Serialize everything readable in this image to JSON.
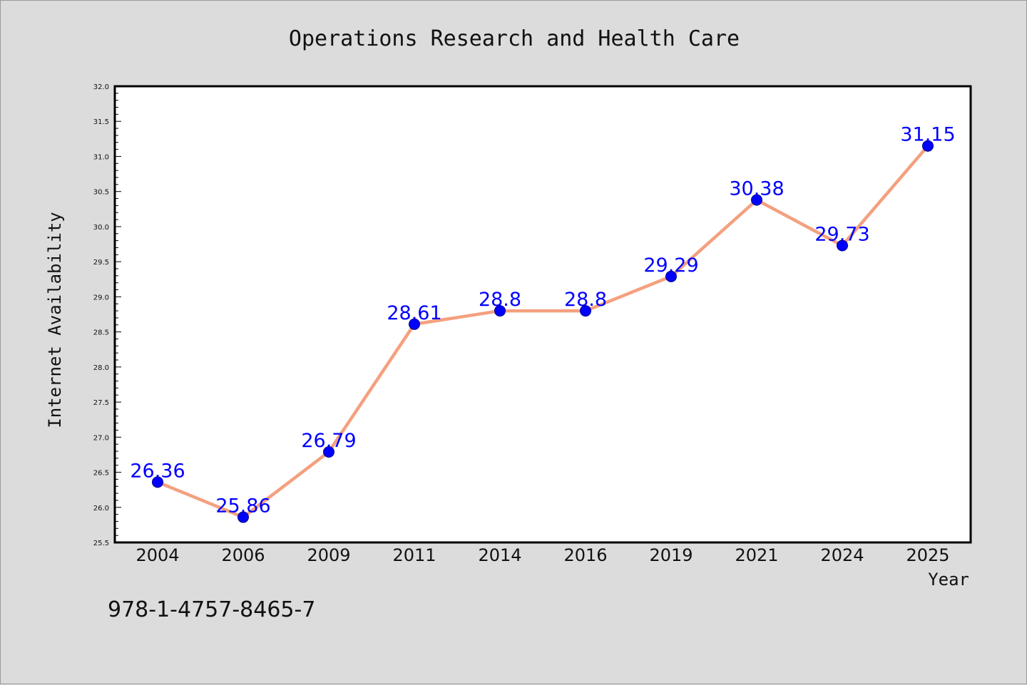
{
  "chart_data": {
    "type": "line",
    "title": "Operations Research and Health Care",
    "xlabel": "Year",
    "ylabel": "Internet Availability",
    "categories": [
      "2004",
      "2006",
      "2009",
      "2011",
      "2014",
      "2016",
      "2019",
      "2021",
      "2024",
      "2025"
    ],
    "values": [
      26.36,
      25.86,
      26.79,
      28.61,
      28.8,
      28.8,
      29.29,
      30.38,
      29.73,
      31.15
    ],
    "data_labels": [
      "26.36",
      "25.86",
      "26.79",
      "28.61",
      "28.8",
      "28.8",
      "29.29",
      "30.38",
      "29.73",
      "31.15"
    ],
    "ylim": [
      25.5,
      32.0
    ],
    "yticks": [
      "25.5",
      "26.0",
      "26.5",
      "27.0",
      "27.5",
      "28.0",
      "28.5",
      "29.0",
      "29.5",
      "30.0",
      "30.5",
      "31.0",
      "31.5",
      "32.0"
    ],
    "grid": false,
    "legend": false,
    "colors": {
      "line": "#f4a07f",
      "marker": "#0000ff",
      "data_label": "#0000ff",
      "plot_background": "#ffffff",
      "page_background": "#dcdcdc"
    }
  },
  "footer": {
    "isbn": "978-1-4757-8465-7"
  }
}
